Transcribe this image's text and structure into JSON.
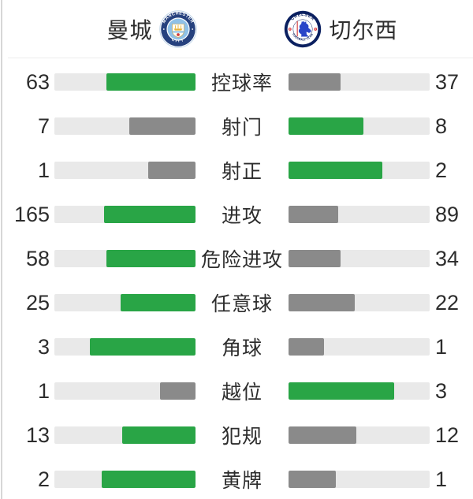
{
  "header": {
    "home": {
      "name": "曼城"
    },
    "away": {
      "name": "切尔西"
    }
  },
  "icons": {
    "home_badge": "manchester-city-crest",
    "away_badge": "chelsea-crest"
  },
  "colors": {
    "leader": "#29a546",
    "trailer": "#8a8a8a",
    "track": "#e9e9e9",
    "text": "#2d2d2d"
  },
  "chart_data": {
    "type": "bar",
    "subtype": "paired-horizontal-team-stats",
    "orientation": "horizontal",
    "legend": "none",
    "grid": false,
    "normalization": "each row's two bars are filled proportionally to value/(home+away)",
    "bar_direction": "home bar fills from center outward to the left, away bar fills from center outward to the right",
    "leader_color_rule": "higher value is green, lower value is gray",
    "categories": [
      "控球率",
      "射门",
      "射正",
      "进攻",
      "危险进攻",
      "任意球",
      "角球",
      "越位",
      "犯规",
      "黄牌"
    ],
    "series": [
      {
        "name": "曼城",
        "values": [
          63,
          7,
          1,
          165,
          58,
          25,
          3,
          1,
          13,
          2
        ]
      },
      {
        "name": "切尔西",
        "values": [
          37,
          8,
          2,
          89,
          34,
          22,
          1,
          3,
          12,
          1
        ]
      }
    ]
  }
}
